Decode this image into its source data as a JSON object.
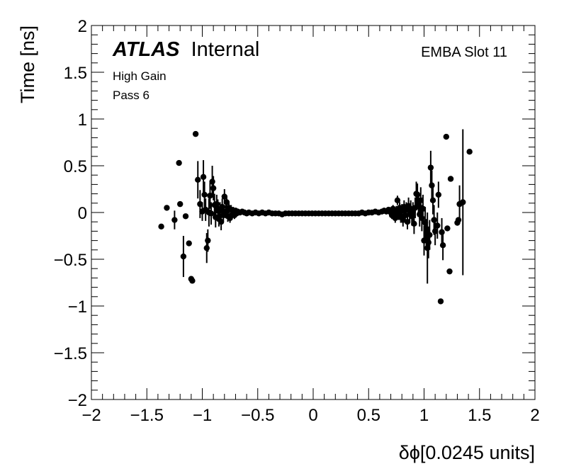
{
  "chart_data": {
    "type": "scatter",
    "xlabel": "δϕ[0.0245 units]",
    "ylabel": "Time [ns]",
    "xlim": [
      -2,
      2
    ],
    "ylim": [
      -2,
      2
    ],
    "x_ticks": [
      "−2",
      "−1.5",
      "−1",
      "−0.5",
      "0",
      "0.5",
      "1",
      "1.5",
      "2"
    ],
    "y_ticks": [
      "2",
      "1.5",
      "1",
      "0.5",
      "0",
      "−0.5",
      "−1",
      "−1.5",
      "−2"
    ],
    "annotations": {
      "experiment": "ATLAS",
      "status": "Internal",
      "gain": "High Gain",
      "pass": "Pass 6",
      "slot": "EMBA Slot 11"
    },
    "marker_color": "#000000",
    "grid": false,
    "series": [
      {
        "points": [
          {
            "x": -1.37,
            "y": -0.15,
            "err": 0
          },
          {
            "x": -1.32,
            "y": 0.05,
            "err": 0
          },
          {
            "x": -1.25,
            "y": -0.08,
            "err": 0.1
          },
          {
            "x": -1.21,
            "y": 0.53,
            "err": 0
          },
          {
            "x": -1.2,
            "y": 0.09,
            "err": 0
          },
          {
            "x": -1.17,
            "y": -0.47,
            "err": 0.22
          },
          {
            "x": -1.15,
            "y": -0.04,
            "err": 0
          },
          {
            "x": -1.12,
            "y": -0.33,
            "err": 0
          },
          {
            "x": -1.1,
            "y": -0.71,
            "err": 0
          },
          {
            "x": -1.09,
            "y": -0.73,
            "err": 0
          },
          {
            "x": -1.06,
            "y": 0.84,
            "err": 0
          },
          {
            "x": -1.04,
            "y": 0.35,
            "err": 0.2
          },
          {
            "x": -1.02,
            "y": 0.09,
            "err": 0.15
          },
          {
            "x": -1.0,
            "y": 0.01,
            "err": 0.1
          },
          {
            "x": -0.99,
            "y": 0.38,
            "err": 0.18
          },
          {
            "x": -0.98,
            "y": 0.19,
            "err": 0.14
          },
          {
            "x": -0.97,
            "y": 0.03,
            "err": 0.12
          },
          {
            "x": -0.96,
            "y": -0.38,
            "err": 0.16
          },
          {
            "x": -0.95,
            "y": -0.3,
            "err": 0.12
          },
          {
            "x": -0.94,
            "y": 0.0,
            "err": 0.15
          },
          {
            "x": -0.93,
            "y": 0.18,
            "err": 0.14
          },
          {
            "x": -0.92,
            "y": -0.01,
            "err": 0.12
          },
          {
            "x": -0.91,
            "y": 0.33,
            "err": 0.17
          },
          {
            "x": -0.9,
            "y": 0.26,
            "err": 0.13
          },
          {
            "x": -0.89,
            "y": 0.08,
            "err": 0.12
          },
          {
            "x": -0.88,
            "y": -0.05,
            "err": 0.11
          },
          {
            "x": -0.87,
            "y": 0.09,
            "err": 0.1
          },
          {
            "x": -0.86,
            "y": 0.04,
            "err": 0.1
          },
          {
            "x": -0.85,
            "y": -0.07,
            "err": 0.08
          },
          {
            "x": -0.84,
            "y": 0.02,
            "err": 0.09
          },
          {
            "x": -0.83,
            "y": -0.1,
            "err": 0.09
          },
          {
            "x": -0.82,
            "y": 0.06,
            "err": 0.09
          },
          {
            "x": -0.81,
            "y": -0.03,
            "err": 0.07
          },
          {
            "x": -0.8,
            "y": 0.17,
            "err": 0.08
          },
          {
            "x": -0.79,
            "y": 0.01,
            "err": 0.07
          },
          {
            "x": -0.78,
            "y": 0.11,
            "err": 0.07
          },
          {
            "x": -0.77,
            "y": -0.04,
            "err": 0.06
          },
          {
            "x": -0.76,
            "y": 0.05,
            "err": 0.06
          },
          {
            "x": -0.75,
            "y": -0.06,
            "err": 0.05
          },
          {
            "x": -0.74,
            "y": 0.03,
            "err": 0.05
          },
          {
            "x": -0.73,
            "y": -0.02,
            "err": 0.04
          },
          {
            "x": -0.72,
            "y": 0.02,
            "err": 0.04
          },
          {
            "x": -0.71,
            "y": -0.03,
            "err": 0.04
          },
          {
            "x": -0.7,
            "y": 0.02,
            "err": 0.03
          },
          {
            "x": -0.69,
            "y": -0.01,
            "err": 0.03
          },
          {
            "x": -0.68,
            "y": 0.01,
            "err": 0.03
          },
          {
            "x": -0.66,
            "y": 0.0,
            "err": 0.02
          },
          {
            "x": -0.64,
            "y": 0.01,
            "err": 0.02
          },
          {
            "x": -0.62,
            "y": 0.0,
            "err": 0.02
          },
          {
            "x": -0.6,
            "y": -0.01,
            "err": 0.02
          },
          {
            "x": -0.58,
            "y": 0.0,
            "err": 0.01
          },
          {
            "x": -0.55,
            "y": -0.01,
            "err": 0.01
          },
          {
            "x": -0.52,
            "y": 0.0,
            "err": 0.01
          },
          {
            "x": -0.49,
            "y": -0.01,
            "err": 0
          },
          {
            "x": -0.46,
            "y": 0.0,
            "err": 0
          },
          {
            "x": -0.43,
            "y": -0.01,
            "err": 0
          },
          {
            "x": -0.4,
            "y": 0.0,
            "err": 0
          },
          {
            "x": -0.37,
            "y": -0.01,
            "err": 0
          },
          {
            "x": -0.34,
            "y": -0.01,
            "err": 0
          },
          {
            "x": -0.31,
            "y": -0.01,
            "err": 0
          },
          {
            "x": -0.28,
            "y": -0.02,
            "err": 0
          },
          {
            "x": -0.25,
            "y": -0.01,
            "err": 0
          },
          {
            "x": -0.22,
            "y": -0.01,
            "err": 0
          },
          {
            "x": -0.19,
            "y": -0.01,
            "err": 0
          },
          {
            "x": -0.16,
            "y": -0.01,
            "err": 0
          },
          {
            "x": -0.13,
            "y": -0.01,
            "err": 0
          },
          {
            "x": -0.1,
            "y": -0.01,
            "err": 0
          },
          {
            "x": -0.07,
            "y": -0.01,
            "err": 0
          },
          {
            "x": -0.04,
            "y": -0.01,
            "err": 0
          },
          {
            "x": -0.01,
            "y": -0.01,
            "err": 0
          },
          {
            "x": 0.02,
            "y": -0.01,
            "err": 0
          },
          {
            "x": 0.05,
            "y": -0.01,
            "err": 0
          },
          {
            "x": 0.08,
            "y": -0.01,
            "err": 0
          },
          {
            "x": 0.11,
            "y": -0.01,
            "err": 0
          },
          {
            "x": 0.14,
            "y": -0.01,
            "err": 0
          },
          {
            "x": 0.17,
            "y": -0.01,
            "err": 0
          },
          {
            "x": 0.2,
            "y": -0.01,
            "err": 0
          },
          {
            "x": 0.23,
            "y": -0.01,
            "err": 0
          },
          {
            "x": 0.26,
            "y": -0.01,
            "err": 0
          },
          {
            "x": 0.29,
            "y": -0.01,
            "err": 0
          },
          {
            "x": 0.32,
            "y": -0.01,
            "err": 0
          },
          {
            "x": 0.35,
            "y": -0.01,
            "err": 0
          },
          {
            "x": 0.38,
            "y": -0.01,
            "err": 0
          },
          {
            "x": 0.41,
            "y": -0.01,
            "err": 0
          },
          {
            "x": 0.44,
            "y": 0.0,
            "err": 0
          },
          {
            "x": 0.47,
            "y": -0.01,
            "err": 0
          },
          {
            "x": 0.5,
            "y": 0.0,
            "err": 0.01
          },
          {
            "x": 0.53,
            "y": 0.0,
            "err": 0.01
          },
          {
            "x": 0.56,
            "y": 0.01,
            "err": 0.01
          },
          {
            "x": 0.59,
            "y": 0.0,
            "err": 0.02
          },
          {
            "x": 0.62,
            "y": 0.01,
            "err": 0.02
          },
          {
            "x": 0.64,
            "y": 0.02,
            "err": 0.02
          },
          {
            "x": 0.66,
            "y": 0.01,
            "err": 0.02
          },
          {
            "x": 0.68,
            "y": 0.03,
            "err": 0.03
          },
          {
            "x": 0.7,
            "y": 0.0,
            "err": 0.03
          },
          {
            "x": 0.71,
            "y": -0.03,
            "err": 0.04
          },
          {
            "x": 0.72,
            "y": 0.04,
            "err": 0.04
          },
          {
            "x": 0.73,
            "y": 0.01,
            "err": 0.04
          },
          {
            "x": 0.74,
            "y": -0.06,
            "err": 0.05
          },
          {
            "x": 0.75,
            "y": 0.02,
            "err": 0.05
          },
          {
            "x": 0.76,
            "y": 0.13,
            "err": 0.05
          },
          {
            "x": 0.77,
            "y": -0.02,
            "err": 0.06
          },
          {
            "x": 0.78,
            "y": 0.05,
            "err": 0.06
          },
          {
            "x": 0.79,
            "y": -0.05,
            "err": 0.06
          },
          {
            "x": 0.8,
            "y": 0.02,
            "err": 0.07
          },
          {
            "x": 0.81,
            "y": -0.08,
            "err": 0.07
          },
          {
            "x": 0.82,
            "y": 0.06,
            "err": 0.07
          },
          {
            "x": 0.83,
            "y": -0.03,
            "err": 0.08
          },
          {
            "x": 0.84,
            "y": 0.03,
            "err": 0.08
          },
          {
            "x": 0.85,
            "y": -0.1,
            "err": 0.08
          },
          {
            "x": 0.86,
            "y": 0.07,
            "err": 0.09
          },
          {
            "x": 0.87,
            "y": -0.02,
            "err": 0.09
          },
          {
            "x": 0.88,
            "y": 0.04,
            "err": 0.09
          },
          {
            "x": 0.89,
            "y": -0.04,
            "err": 0.1
          },
          {
            "x": 0.9,
            "y": 0.01,
            "err": 0.1
          },
          {
            "x": 0.91,
            "y": -0.12,
            "err": 0.11
          },
          {
            "x": 0.92,
            "y": 0.05,
            "err": 0.11
          },
          {
            "x": 0.93,
            "y": 0.2,
            "err": 0.13
          },
          {
            "x": 0.94,
            "y": 0.19,
            "err": 0.12
          },
          {
            "x": 0.95,
            "y": 0.09,
            "err": 0.13
          },
          {
            "x": 0.96,
            "y": -0.02,
            "err": 0.13
          },
          {
            "x": 0.97,
            "y": 0.13,
            "err": 0.14
          },
          {
            "x": 0.98,
            "y": -0.06,
            "err": 0.14
          },
          {
            "x": 0.99,
            "y": 0.04,
            "err": 0.15
          },
          {
            "x": 1.0,
            "y": -0.3,
            "err": 0.16
          },
          {
            "x": 1.01,
            "y": -0.11,
            "err": 0.17
          },
          {
            "x": 1.02,
            "y": -0.22,
            "err": 0.15
          },
          {
            "x": 1.03,
            "y": -0.38,
            "err": 0.38
          },
          {
            "x": 1.04,
            "y": -0.32,
            "err": 0.17
          },
          {
            "x": 1.05,
            "y": -0.24,
            "err": 0.16
          },
          {
            "x": 1.06,
            "y": 0.48,
            "err": 0.18
          },
          {
            "x": 1.07,
            "y": 0.29,
            "err": 0.16
          },
          {
            "x": 1.08,
            "y": 0.13,
            "err": 0.15
          },
          {
            "x": 1.09,
            "y": -0.08,
            "err": 0.16
          },
          {
            "x": 1.1,
            "y": -0.2,
            "err": 0.15
          },
          {
            "x": 1.12,
            "y": -0.14,
            "err": 0.14
          },
          {
            "x": 1.13,
            "y": 0.19,
            "err": 0.14
          },
          {
            "x": 1.15,
            "y": -0.95,
            "err": 0
          },
          {
            "x": 1.16,
            "y": -0.21,
            "err": 0.15
          },
          {
            "x": 1.17,
            "y": -0.35,
            "err": 0.16
          },
          {
            "x": 1.2,
            "y": 0.81,
            "err": 0
          },
          {
            "x": 1.21,
            "y": -0.17,
            "err": 0
          },
          {
            "x": 1.23,
            "y": -0.63,
            "err": 0
          },
          {
            "x": 1.24,
            "y": 0.36,
            "err": 0
          },
          {
            "x": 1.3,
            "y": -0.11,
            "err": 0
          },
          {
            "x": 1.31,
            "y": -0.08,
            "err": 0
          },
          {
            "x": 1.32,
            "y": 0.09,
            "err": 0.2
          },
          {
            "x": 1.35,
            "y": 0.11,
            "err": 0.78
          },
          {
            "x": 1.41,
            "y": 0.65,
            "err": 0
          }
        ]
      }
    ]
  }
}
